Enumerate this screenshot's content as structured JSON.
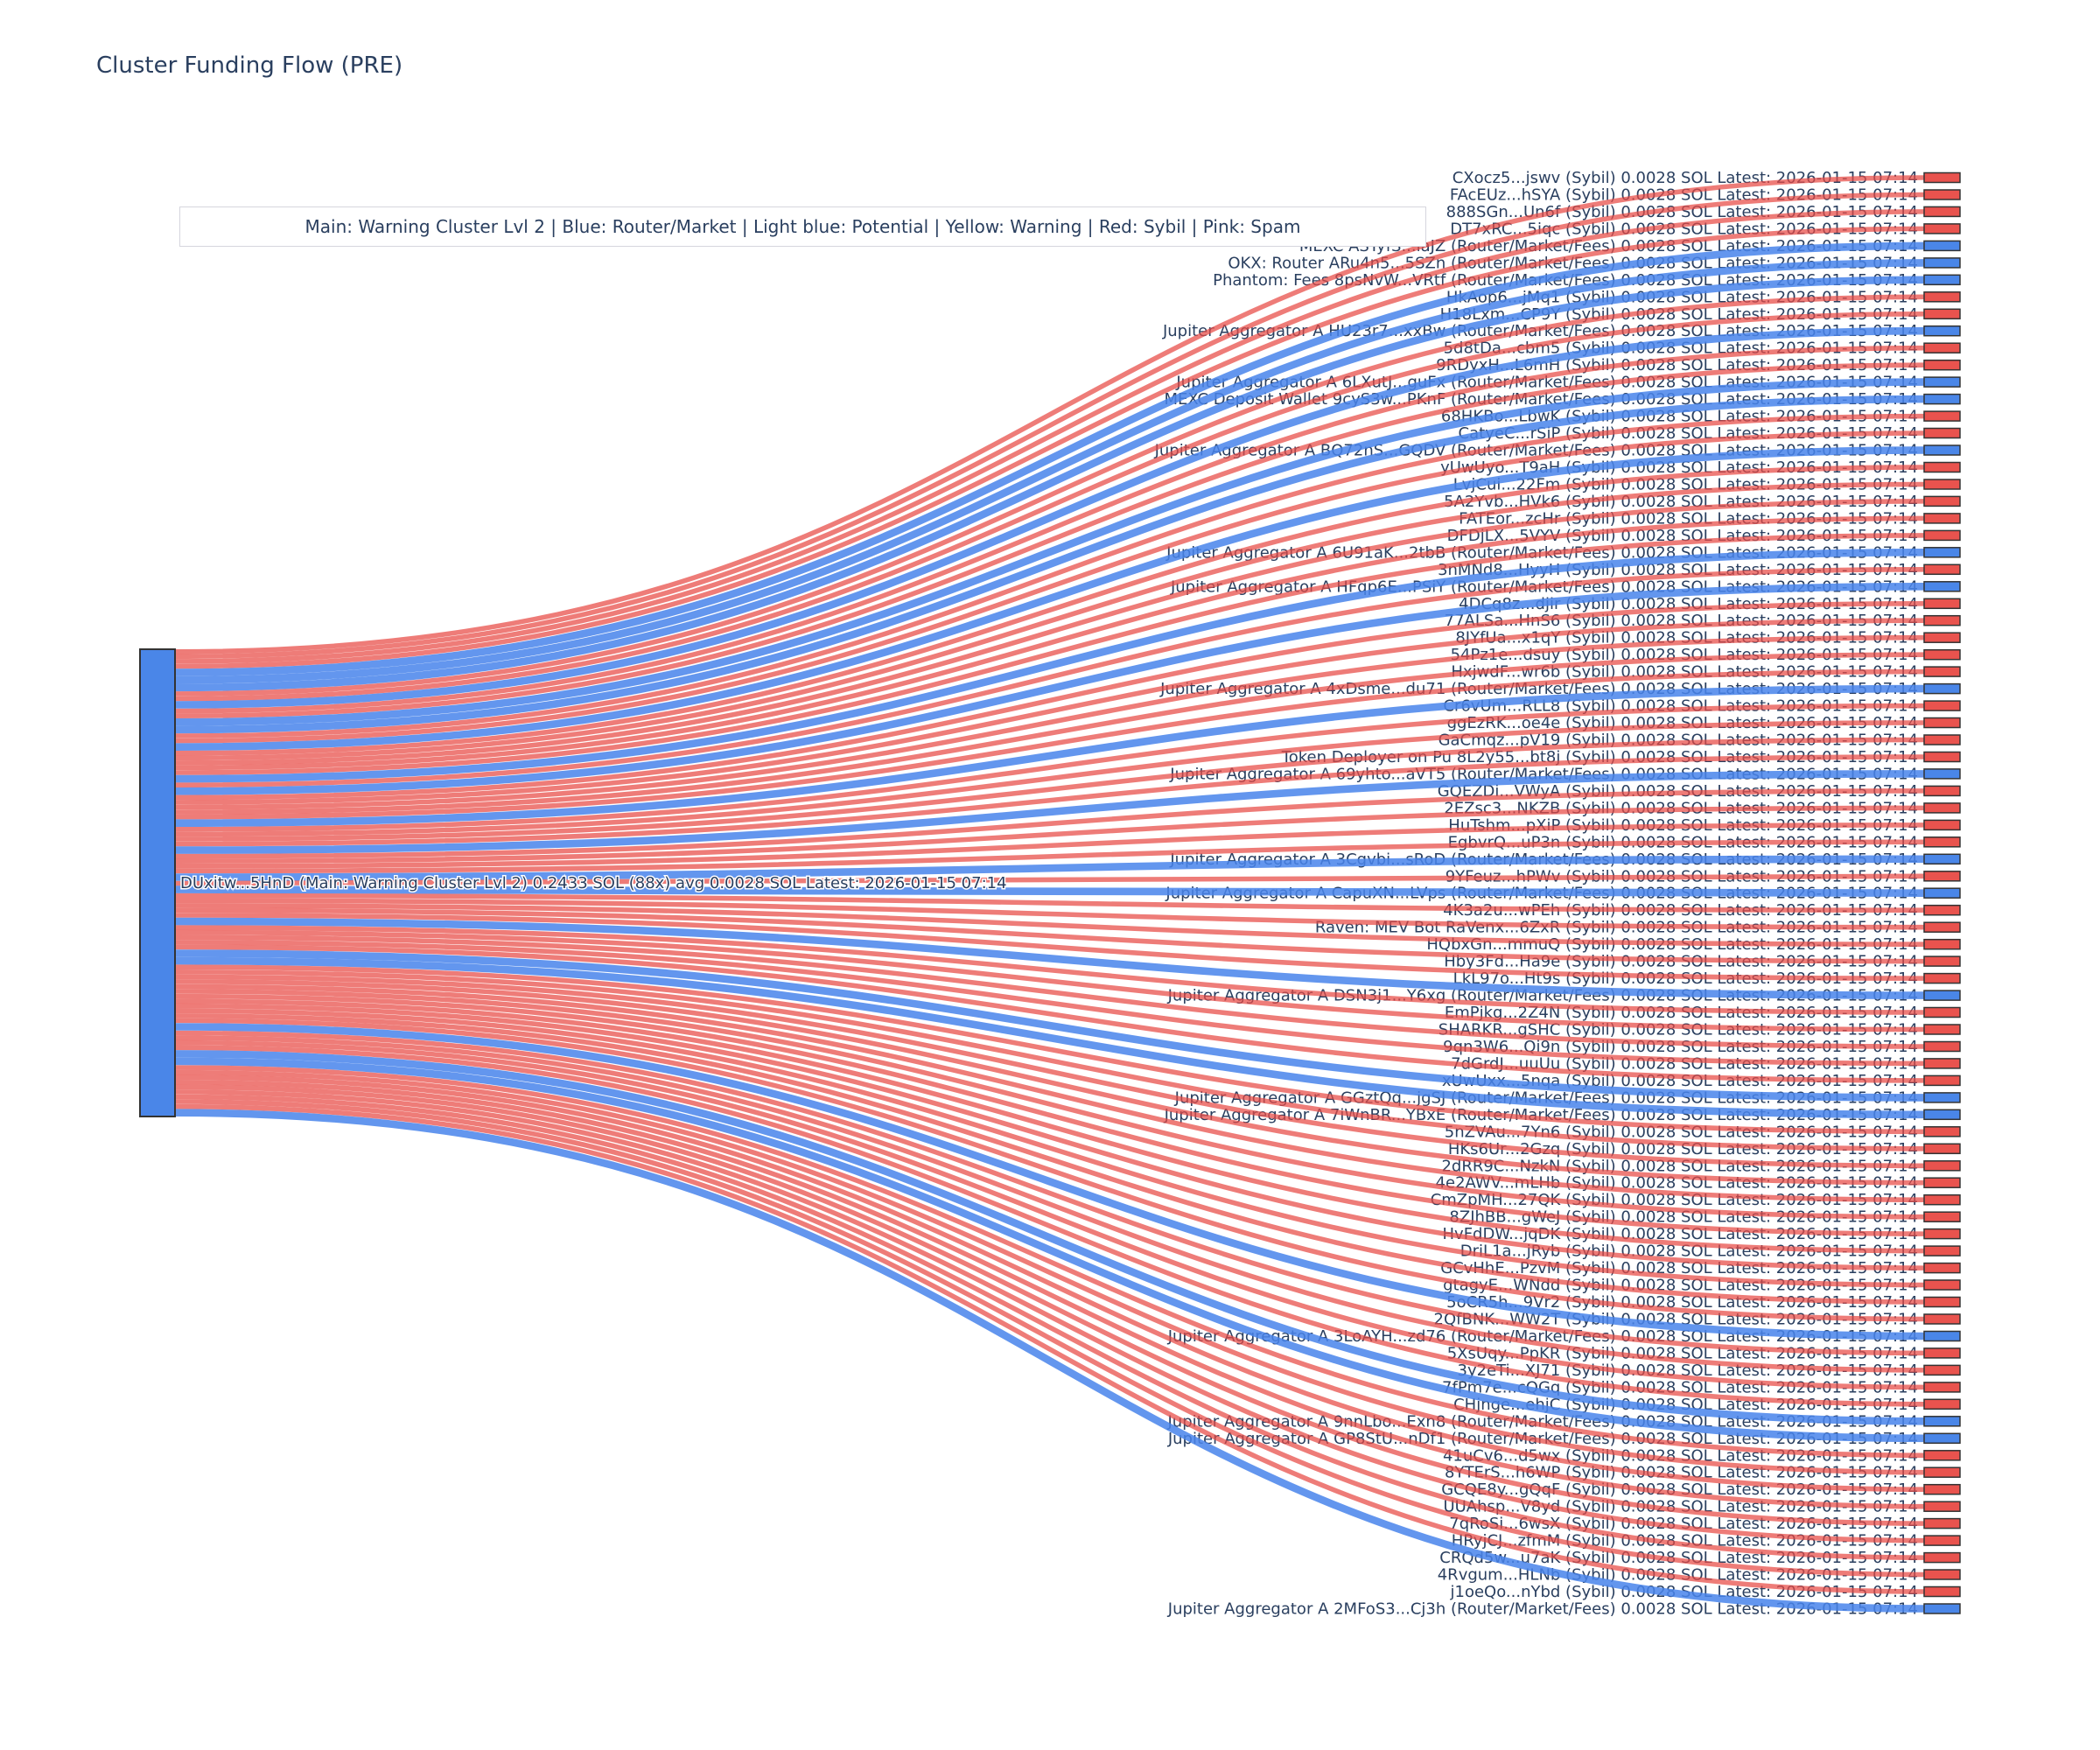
{
  "figure": {
    "title": "Cluster Funding Flow (PRE)",
    "legend_text": "Main: Warning Cluster Lvl 2  |  Blue: Router/Market | Light blue: Potential | Yellow: Warning | Red: Sybil | Pink: Spam"
  },
  "colors": {
    "title_text": "#2a3f5f",
    "label_text": "#2a3f5f",
    "main_node": "#4a86e8",
    "sybil_node": "#e9534e",
    "router_node": "#4a86e8",
    "sybil_link": "rgba(232,74,68,0.72)",
    "router_link": "rgba(72,132,235,0.85)",
    "node_border": "#333333",
    "legend_border": "#d6d6de"
  },
  "chart_data": {
    "type": "sankey",
    "title": "Cluster Funding Flow (PRE)",
    "main_node": {
      "label": "DUxitw...5HnD (Main: Warning Cluster Lvl 2) 0.2433 SOL (88x) avg 0.0028 SOL Latest: 2026-01-15 07:14",
      "address": "DUxitw...5HnD",
      "cluster": "Main: Warning Cluster Lvl 2",
      "total": "0.2433 SOL",
      "tx_count": "88x",
      "avg": "avg 0.0028 SOL",
      "latest": "2026-01-15 07:14"
    },
    "per_link_amount": "0.0028 SOL",
    "latest": "2026-01-15 07:14",
    "targets": [
      {
        "name": "CXocz5...jswv",
        "category": "Sybil"
      },
      {
        "name": "FAcEUz...hSYA",
        "category": "Sybil"
      },
      {
        "name": "888SGn...Un6f",
        "category": "Sybil"
      },
      {
        "name": "DT7xRC...5iqc",
        "category": "Sybil"
      },
      {
        "name": "MEXC ASTyfS...iaJZ",
        "category": "Router/Market/Fees"
      },
      {
        "name": "OKX: Router ARu4n5...5SZn",
        "category": "Router/Market/Fees"
      },
      {
        "name": "Phantom: Fees 8psNvW...VRtf",
        "category": "Router/Market/Fees"
      },
      {
        "name": "HkAop6...jMq1",
        "category": "Sybil"
      },
      {
        "name": "H18Lxm...CP9Y",
        "category": "Sybil"
      },
      {
        "name": "Jupiter Aggregator A HU23r7...xxBw",
        "category": "Router/Market/Fees"
      },
      {
        "name": "5d8tDa...cbm5",
        "category": "Sybil"
      },
      {
        "name": "9RDyxH...L6mH",
        "category": "Sybil"
      },
      {
        "name": "Jupiter Aggregator A 6LXutJ...guFx",
        "category": "Router/Market/Fees"
      },
      {
        "name": "MEXC Deposit Wallet 9cyS3w...PKnF",
        "category": "Router/Market/Fees"
      },
      {
        "name": "68HKBo...LbwK",
        "category": "Sybil"
      },
      {
        "name": "CatyeC...rSiP",
        "category": "Sybil"
      },
      {
        "name": "Jupiter Aggregator A BQ72nS...GQDV",
        "category": "Router/Market/Fees"
      },
      {
        "name": "yUwUyo...T9aH",
        "category": "Sybil"
      },
      {
        "name": "LvjCui...22Fm",
        "category": "Sybil"
      },
      {
        "name": "5A2Yvb...HVk6",
        "category": "Sybil"
      },
      {
        "name": "FATEor...zcHr",
        "category": "Sybil"
      },
      {
        "name": "DFDjLX...5VYV",
        "category": "Sybil"
      },
      {
        "name": "Jupiter Aggregator A 6U91aK...2tbB",
        "category": "Router/Market/Fees"
      },
      {
        "name": "3nMNd8...HyyH",
        "category": "Sybil"
      },
      {
        "name": "Jupiter Aggregator A HFqp6E...PSiY",
        "category": "Router/Market/Fees"
      },
      {
        "name": "4DCq8z...djir",
        "category": "Sybil"
      },
      {
        "name": "77ALSa...HnS6",
        "category": "Sybil"
      },
      {
        "name": "8JYfUa...x1qY",
        "category": "Sybil"
      },
      {
        "name": "54Pz1e...dsuy",
        "category": "Sybil"
      },
      {
        "name": "HxjwdF...wr6b",
        "category": "Sybil"
      },
      {
        "name": "Jupiter Aggregator A 4xDsme...du71",
        "category": "Router/Market/Fees"
      },
      {
        "name": "Cr6vUm...RLL8",
        "category": "Sybil"
      },
      {
        "name": "ggEzRK...oe4e",
        "category": "Sybil"
      },
      {
        "name": "GaCmqz...pV19",
        "category": "Sybil"
      },
      {
        "name": "Token Deployer on Pu 8L2y55...bt8j",
        "category": "Sybil"
      },
      {
        "name": "Jupiter Aggregator A 69yhto...aVT5",
        "category": "Router/Market/Fees"
      },
      {
        "name": "GQEZDi...VWyA",
        "category": "Sybil"
      },
      {
        "name": "2EZsc3...NKZB",
        "category": "Sybil"
      },
      {
        "name": "HuTshm...pXiP",
        "category": "Sybil"
      },
      {
        "name": "EgbvrQ...uP3n",
        "category": "Sybil"
      },
      {
        "name": "Jupiter Aggregator A 3Cgvbi...sRoD",
        "category": "Router/Market/Fees"
      },
      {
        "name": "9YFeuz...hPWv",
        "category": "Sybil"
      },
      {
        "name": "Jupiter Aggregator A CapuXN...LVps",
        "category": "Router/Market/Fees"
      },
      {
        "name": "4K3a2u...wPEh",
        "category": "Sybil"
      },
      {
        "name": "Raven: MEV Bot RaVenx...6ZxR",
        "category": "Sybil"
      },
      {
        "name": "HQbxGn...mmuQ",
        "category": "Sybil"
      },
      {
        "name": "Hby3Fd...Ha9e",
        "category": "Sybil"
      },
      {
        "name": "LkL97o...Ht9s",
        "category": "Sybil"
      },
      {
        "name": "Jupiter Aggregator A DSN3j1...Y6xg",
        "category": "Router/Market/Fees"
      },
      {
        "name": "EmPjkg...2Z4N",
        "category": "Sybil"
      },
      {
        "name": "SHARKR...gSHC",
        "category": "Sybil"
      },
      {
        "name": "9qn3W6...Qi9n",
        "category": "Sybil"
      },
      {
        "name": "7dGrdJ...uuUu",
        "category": "Sybil"
      },
      {
        "name": "xUwUxx...5nqa",
        "category": "Sybil"
      },
      {
        "name": "Jupiter Aggregator A GGztQq...jgSJ",
        "category": "Router/Market/Fees"
      },
      {
        "name": "Jupiter Aggregator A 7iWnBR...YBxE",
        "category": "Router/Market/Fees"
      },
      {
        "name": "5nZVAu...7Yn6",
        "category": "Sybil"
      },
      {
        "name": "HKs6Ur...2Gzq",
        "category": "Sybil"
      },
      {
        "name": "2dRR9C...NzkN",
        "category": "Sybil"
      },
      {
        "name": "4e2AWV...mLHb",
        "category": "Sybil"
      },
      {
        "name": "CmZpMH...27QK",
        "category": "Sybil"
      },
      {
        "name": "8ZJhBB...gWeJ",
        "category": "Sybil"
      },
      {
        "name": "HvFdDW...jqDK",
        "category": "Sybil"
      },
      {
        "name": "DriL1a...jRyb",
        "category": "Sybil"
      },
      {
        "name": "GCvHhE...PzvM",
        "category": "Sybil"
      },
      {
        "name": "gtagyE...WNdd",
        "category": "Sybil"
      },
      {
        "name": "5oCR5h...9Vr2",
        "category": "Sybil"
      },
      {
        "name": "2QfBNK...WW2T",
        "category": "Sybil"
      },
      {
        "name": "Jupiter Aggregator A 3LoAYH...zd76",
        "category": "Router/Market/Fees"
      },
      {
        "name": "5XsUqy...PpKR",
        "category": "Sybil"
      },
      {
        "name": "3y2eTi...XJ71",
        "category": "Sybil"
      },
      {
        "name": "7fPm7e...cQGq",
        "category": "Sybil"
      },
      {
        "name": "CHjnge...ehjC",
        "category": "Sybil"
      },
      {
        "name": "Jupiter Aggregator A 9nnLbo...Exn8",
        "category": "Router/Market/Fees"
      },
      {
        "name": "Jupiter Aggregator A GP8StU...nDf1",
        "category": "Router/Market/Fees"
      },
      {
        "name": "41uCv6...d5wx",
        "category": "Sybil"
      },
      {
        "name": "8YTErS...h6WP",
        "category": "Sybil"
      },
      {
        "name": "GCQE8y...gQqF",
        "category": "Sybil"
      },
      {
        "name": "UUAhsp...V8yd",
        "category": "Sybil"
      },
      {
        "name": "7qRoSi...6wsX",
        "category": "Sybil"
      },
      {
        "name": "HRyjCJ...zfmM",
        "category": "Sybil"
      },
      {
        "name": "CRQd5w...u7aK",
        "category": "Sybil"
      },
      {
        "name": "4Rvgum...HLNb",
        "category": "Sybil"
      },
      {
        "name": "j1oeQo...nYbd",
        "category": "Sybil"
      },
      {
        "name": "Jupiter Aggregator A 2MFoS3...Cj3h",
        "category": "Router/Market/Fees"
      }
    ]
  }
}
